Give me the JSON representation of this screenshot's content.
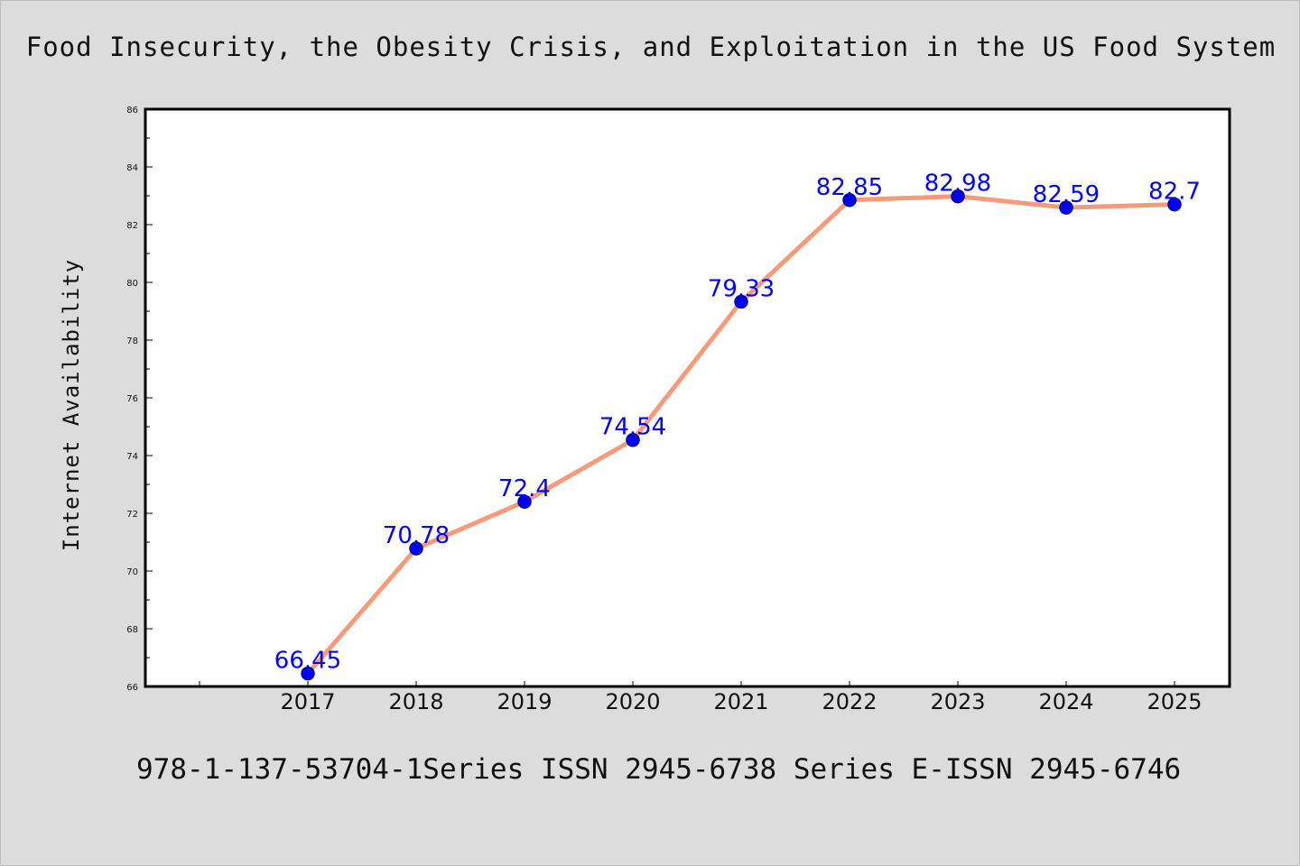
{
  "chart_data": {
    "type": "line",
    "title": "Food Insecurity, the Obesity Crisis, and Exploitation in the US Food System",
    "xlabel": "",
    "ylabel": "Internet Availability",
    "categories": [
      "2017",
      "2018",
      "2019",
      "2020",
      "2021",
      "2022",
      "2023",
      "2024",
      "2025"
    ],
    "series": [
      {
        "values": [
          66.45,
          70.78,
          72.4,
          74.54,
          79.33,
          82.85,
          82.98,
          82.59,
          82.7
        ],
        "labels": [
          "66.45",
          "70.78",
          "72.4",
          "74.54",
          "79.33",
          "82.85",
          "82.98",
          "82.59",
          "82.7"
        ]
      }
    ],
    "ylim": [
      66,
      86
    ],
    "yticks": [
      "66",
      "68",
      "70",
      "72",
      "74",
      "76",
      "78",
      "80",
      "82",
      "84",
      "86"
    ],
    "grid": false,
    "legend": "none",
    "colors": {
      "line": "#f79a7a",
      "marker": "#0000ff",
      "marker_edge": "#00007a",
      "data_label": "#0000ff"
    }
  },
  "footer": {
    "text": "978-1-137-53704-1Series ISSN 2945-6738 Series E-ISSN 2945-6746"
  }
}
